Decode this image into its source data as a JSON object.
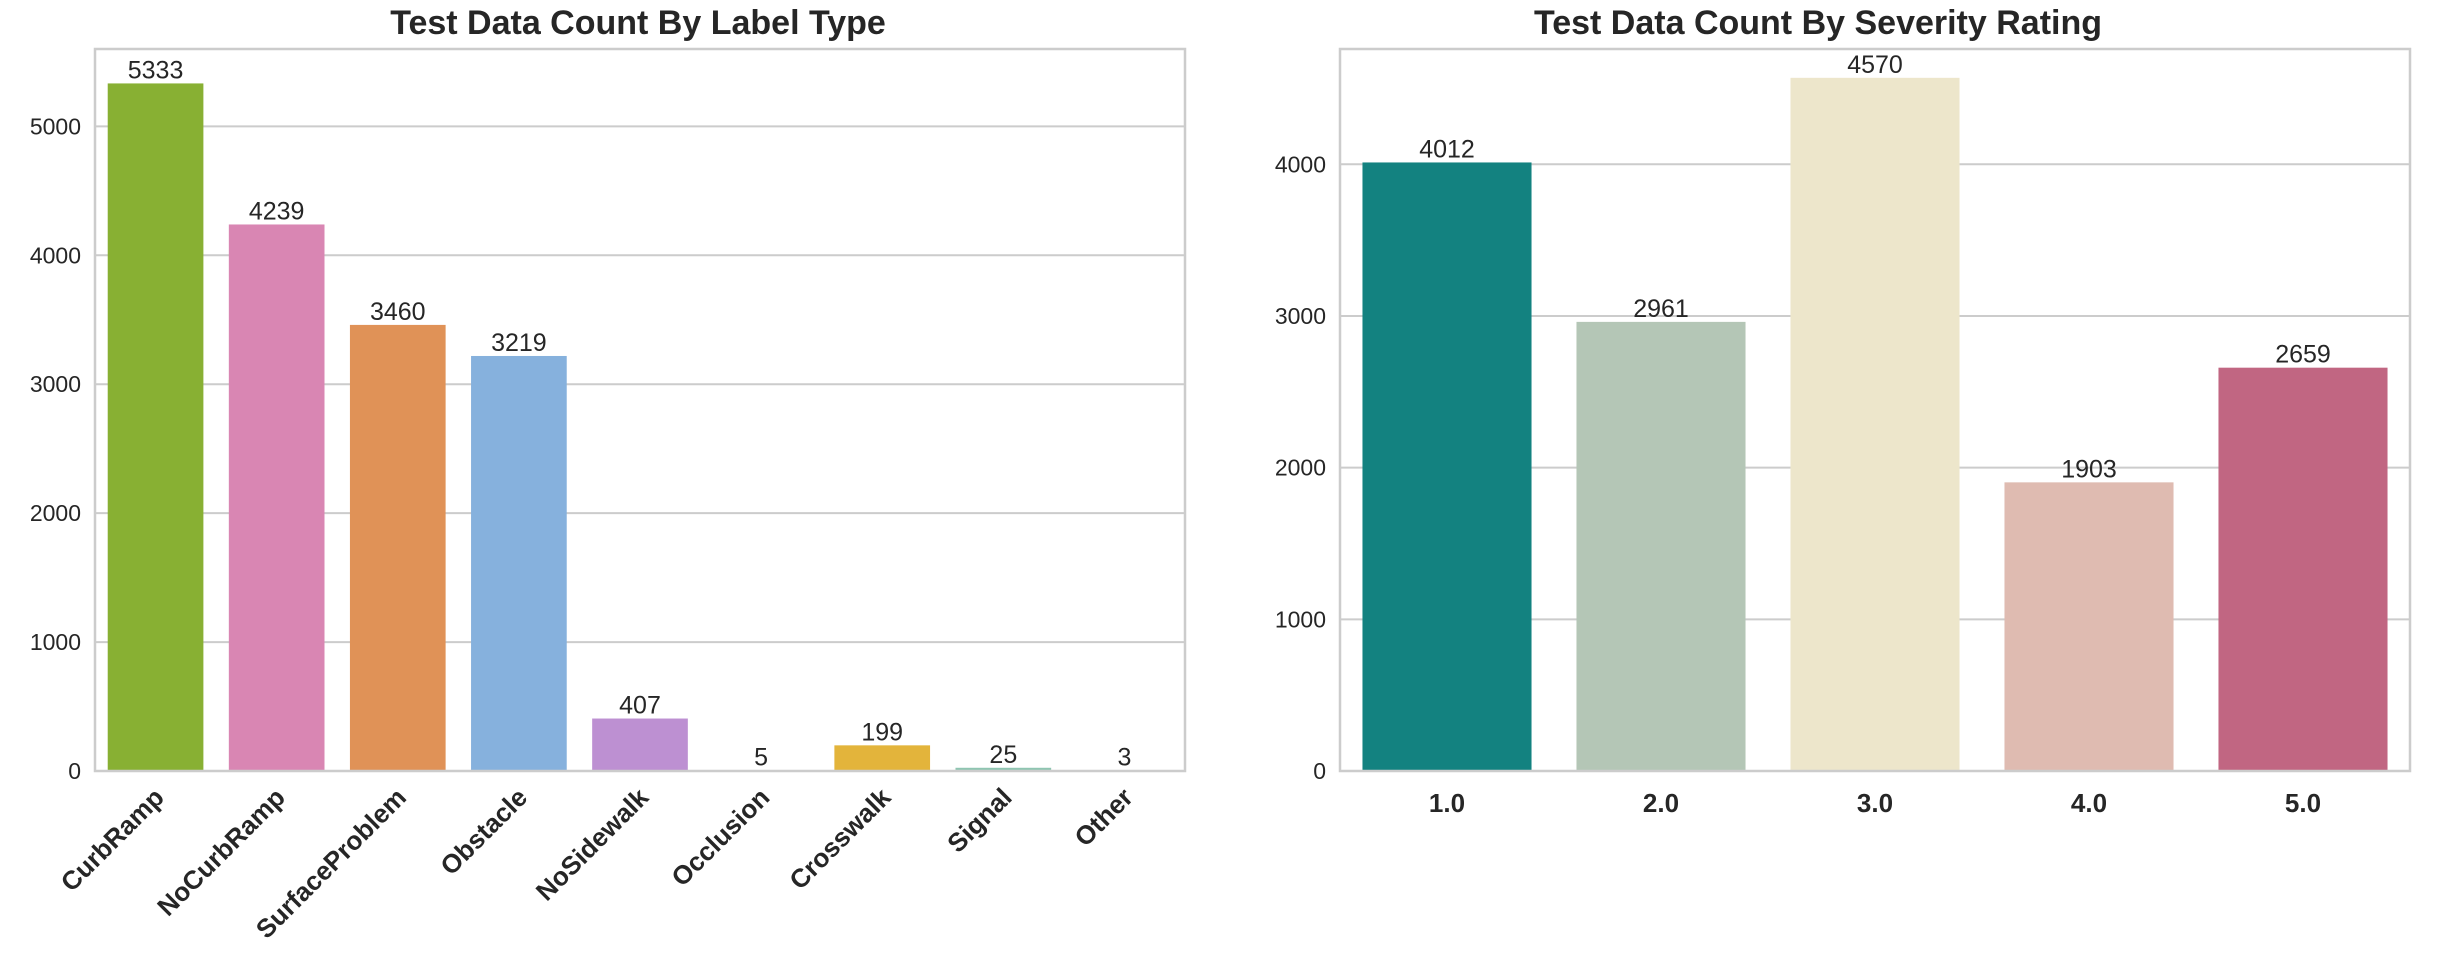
{
  "chart_data": [
    {
      "type": "bar",
      "title": "Test Data Count By Label Type",
      "xlabel": "",
      "ylabel": "",
      "categories": [
        "CurbRamp",
        "NoCurbRamp",
        "SurfaceProblem",
        "Obstacle",
        "NoSidewalk",
        "Occlusion",
        "Crosswalk",
        "Signal",
        "Other"
      ],
      "values": [
        5333,
        4239,
        3460,
        3219,
        407,
        5,
        199,
        25,
        3
      ],
      "colors": [
        "#88b033",
        "#d986b3",
        "#e09257",
        "#86b1dd",
        "#bd90d2",
        "#b9d486",
        "#e3b43b",
        "#8fc5b1",
        "#ccccd8"
      ],
      "yticks": [
        0,
        1000,
        2000,
        3000,
        4000,
        5000
      ],
      "ylim": [
        0,
        5600
      ],
      "grid": true,
      "xtick_rotation": 45
    },
    {
      "type": "bar",
      "title": "Test Data Count By Severity Rating",
      "xlabel": "",
      "ylabel": "",
      "categories": [
        "1.0",
        "2.0",
        "3.0",
        "4.0",
        "5.0"
      ],
      "values": [
        4012,
        2961,
        4570,
        1903,
        2659
      ],
      "colors": [
        "#138280",
        "#b4c6b6",
        "#ede6cb",
        "#dfbbb1",
        "#c16682"
      ],
      "yticks": [
        0,
        1000,
        2000,
        3000,
        4000
      ],
      "ylim": [
        0,
        4760
      ],
      "grid": true,
      "xtick_rotation": 0
    }
  ]
}
